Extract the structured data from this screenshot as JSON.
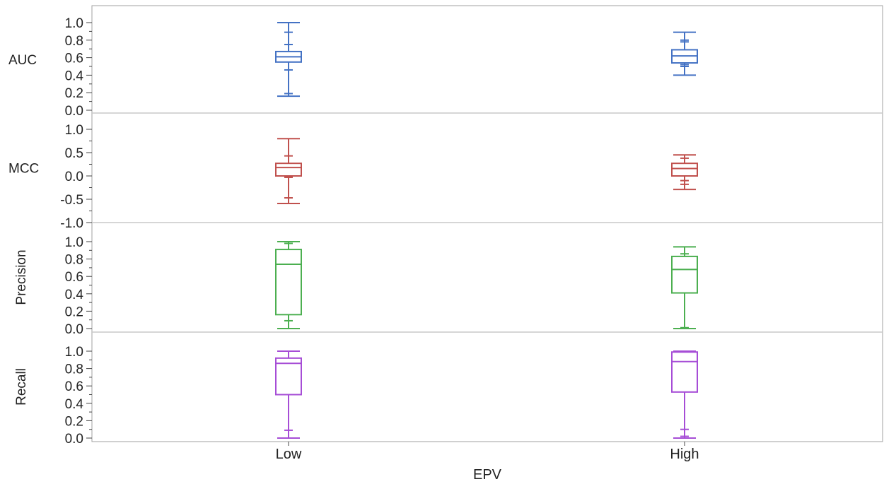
{
  "chart_data": {
    "type": "box",
    "xlabel": "EPV",
    "categories": [
      "Low",
      "High"
    ],
    "panels": [
      {
        "ylabel": "AUC",
        "color": "#4472c4",
        "ylim": [
          0.0,
          1.0
        ],
        "yticks": [
          0.0,
          0.2,
          0.4,
          0.6,
          0.8,
          1.0
        ],
        "ytick_labels": [
          "0.0",
          "0.2",
          "0.4",
          "0.6",
          "0.8",
          "1.0"
        ],
        "boxes": [
          {
            "category": "Low",
            "min": 0.16,
            "q1": 0.55,
            "median": 0.61,
            "q3": 0.67,
            "max": 1.0,
            "inner_lower": 0.19,
            "inner_upper": 0.89,
            "marks": [
              0.46,
              0.75
            ]
          },
          {
            "category": "High",
            "min": 0.4,
            "q1": 0.54,
            "median": 0.62,
            "q3": 0.69,
            "max": 0.89,
            "inner_lower": 0.5,
            "inner_upper": 0.8,
            "marks": [
              0.52,
              0.78
            ]
          }
        ]
      },
      {
        "ylabel": "MCC",
        "color": "#c0504d",
        "ylim": [
          -1.0,
          1.0
        ],
        "yticks": [
          -1.0,
          -0.5,
          0.0,
          0.5,
          1.0
        ],
        "ytick_labels": [
          "-1.0",
          "-0.5",
          "0.0",
          "0.5",
          "1.0"
        ],
        "boxes": [
          {
            "category": "Low",
            "min": -0.59,
            "q1": 0.0,
            "median": 0.18,
            "q3": 0.27,
            "max": 0.8,
            "inner_lower": -0.47,
            "inner_upper": 0.43,
            "marks": [
              -0.03
            ]
          },
          {
            "category": "High",
            "min": -0.29,
            "q1": 0.0,
            "median": 0.16,
            "q3": 0.27,
            "max": 0.45,
            "inner_lower": -0.18,
            "inner_upper": 0.38,
            "marks": [
              -0.1
            ]
          }
        ]
      },
      {
        "ylabel": "Precision",
        "color": "#4caf50",
        "ylim": [
          0.0,
          1.0
        ],
        "yticks": [
          0.0,
          0.2,
          0.4,
          0.6,
          0.8,
          1.0
        ],
        "ytick_labels": [
          "0.0",
          "0.2",
          "0.4",
          "0.6",
          "0.8",
          "1.0"
        ],
        "boxes": [
          {
            "category": "Low",
            "min": 0.0,
            "q1": 0.16,
            "median": 0.74,
            "q3": 0.91,
            "max": 1.0,
            "inner_lower": 0.09,
            "inner_upper": 0.98,
            "marks": []
          },
          {
            "category": "High",
            "min": 0.0,
            "q1": 0.41,
            "median": 0.68,
            "q3": 0.83,
            "max": 0.94,
            "inner_lower": 0.01,
            "inner_upper": 0.86,
            "marks": []
          }
        ]
      },
      {
        "ylabel": "Recall",
        "color": "#a64dd6",
        "ylim": [
          0.0,
          1.0
        ],
        "yticks": [
          0.0,
          0.2,
          0.4,
          0.6,
          0.8,
          1.0
        ],
        "ytick_labels": [
          "0.0",
          "0.2",
          "0.4",
          "0.6",
          "0.8",
          "1.0"
        ],
        "boxes": [
          {
            "category": "Low",
            "min": 0.0,
            "q1": 0.5,
            "median": 0.86,
            "q3": 0.92,
            "max": 1.0,
            "inner_lower": 0.09,
            "inner_upper": 1.0,
            "marks": []
          },
          {
            "category": "High",
            "min": 0.0,
            "q1": 0.53,
            "median": 0.88,
            "q3": 0.99,
            "max": 1.0,
            "inner_lower": 0.1,
            "inner_upper": 1.0,
            "marks": [
              0.02
            ]
          }
        ]
      }
    ],
    "grid": false,
    "legend": "none"
  }
}
